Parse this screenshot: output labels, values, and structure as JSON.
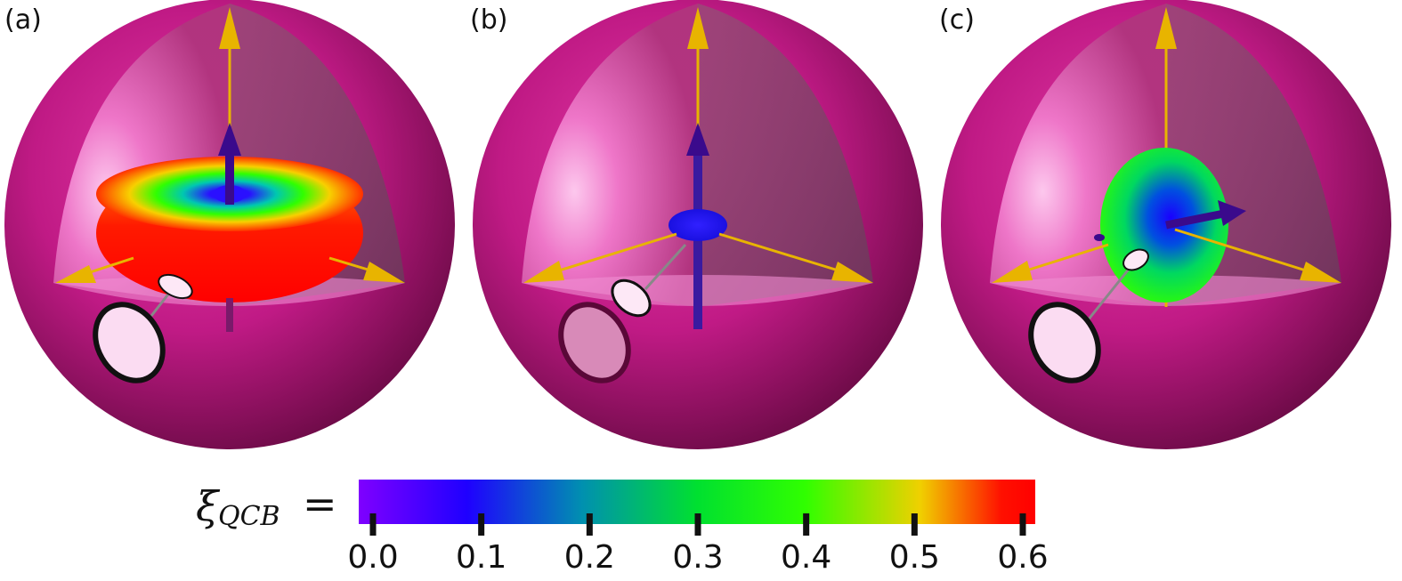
{
  "panels": [
    {
      "label": "(a)",
      "shape": "torus",
      "central_arrow": "up"
    },
    {
      "label": "(b)",
      "shape": "small-disc",
      "central_arrow": "up"
    },
    {
      "label": "(c)",
      "shape": "vertical-disc",
      "central_arrow": "right"
    }
  ],
  "colorbar": {
    "symbol": "ξ",
    "subscript": "QCB",
    "equals": "=",
    "range": [
      0.0,
      0.6
    ],
    "ticks": [
      "0.0",
      "0.1",
      "0.2",
      "0.3",
      "0.4",
      "0.5",
      "0.6"
    ],
    "colormap": [
      "#7f00ff",
      "#1f00ff",
      "#0090b0",
      "#00e030",
      "#30ff00",
      "#f0d000",
      "#ff1000"
    ]
  },
  "colors": {
    "sphere": "#c01a85",
    "sphere_dark": "#6e0b48",
    "axis_arrow": "#e8b400",
    "state_arrow": "#3a0a8c"
  }
}
